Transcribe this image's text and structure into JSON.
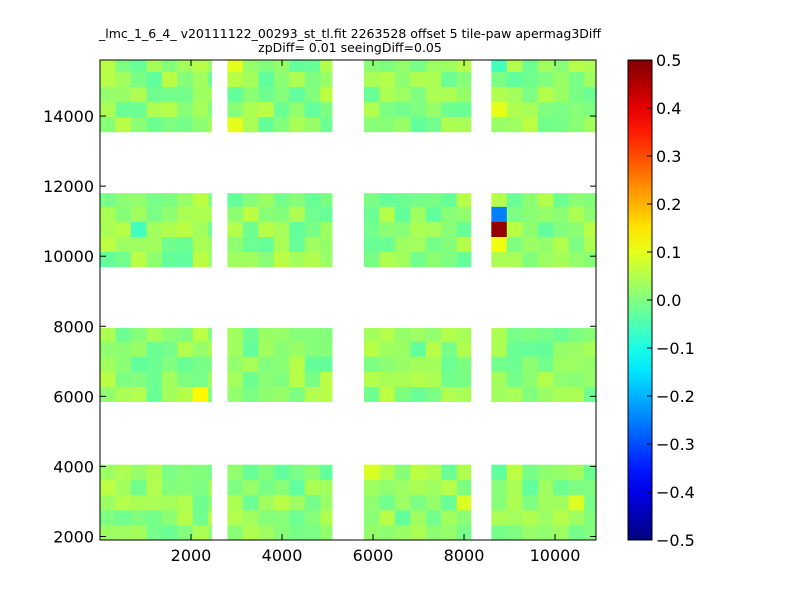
{
  "chart_data": {
    "type": "heatmap",
    "title": "_lmc_1_6_4_ v20111122_00293_st_tl.fit 2263528 offset 5 tile-paw apermag3Diff",
    "subtitle": "zpDiff= 0.01 seeingDiff=0.05",
    "xlabel": "",
    "ylabel": "",
    "xlim": [
      0,
      10900
    ],
    "ylim": [
      1900,
      15600
    ],
    "x_ticks": [
      "2000",
      "4000",
      "6000",
      "8000",
      "10000"
    ],
    "y_ticks": [
      "2000",
      "4000",
      "6000",
      "8000",
      "10000",
      "12000",
      "14000"
    ],
    "colorbar": {
      "colormap": "jet",
      "vmin": -0.5,
      "vmax": 0.5,
      "ticks": [
        "0.5",
        "0.4",
        "0.3",
        "0.2",
        "0.1",
        "0.0",
        "−0.1",
        "−0.2",
        "−0.3",
        "−0.4",
        "−0.5"
      ]
    },
    "grid": false,
    "bin_size": [
      340,
      430
    ],
    "tile_rows": [
      {
        "name": "row-1",
        "y": [
          1900,
          4050
        ]
      },
      {
        "name": "row-2",
        "y": [
          5850,
          7950
        ]
      },
      {
        "name": "row-3",
        "y": [
          9700,
          11800
        ]
      },
      {
        "name": "row-4",
        "y": [
          13550,
          15600
        ]
      }
    ],
    "tile_columns": [
      {
        "name": "col-1",
        "x": [
          0,
          2450
        ]
      },
      {
        "name": "col-2",
        "x": [
          2800,
          5100
        ]
      },
      {
        "name": "col-3",
        "x": [
          5800,
          8150
        ]
      },
      {
        "name": "col-4",
        "x": [
          8600,
          10900
        ]
      }
    ],
    "background_range": [
      -0.03,
      0.06
    ],
    "notable_cells": [
      {
        "x": 8680,
        "y": 11200,
        "value": -0.25
      },
      {
        "x": 8680,
        "y": 10750,
        "value": 0.48
      },
      {
        "x": 8680,
        "y": 10250,
        "value": 0.11
      },
      {
        "x": 8680,
        "y": 14400,
        "value": 0.1
      },
      {
        "x": 8680,
        "y": 15400,
        "value": -0.06
      },
      {
        "x": 2200,
        "y": 6000,
        "value": 0.13
      },
      {
        "x": 2900,
        "y": 13800,
        "value": 0.1
      },
      {
        "x": 2900,
        "y": 15400,
        "value": 0.1
      },
      {
        "x": 700,
        "y": 10700,
        "value": -0.06
      },
      {
        "x": 6000,
        "y": 3850,
        "value": 0.09
      },
      {
        "x": 7900,
        "y": 2900,
        "value": 0.09
      },
      {
        "x": 10500,
        "y": 2900,
        "value": 0.09
      }
    ]
  }
}
